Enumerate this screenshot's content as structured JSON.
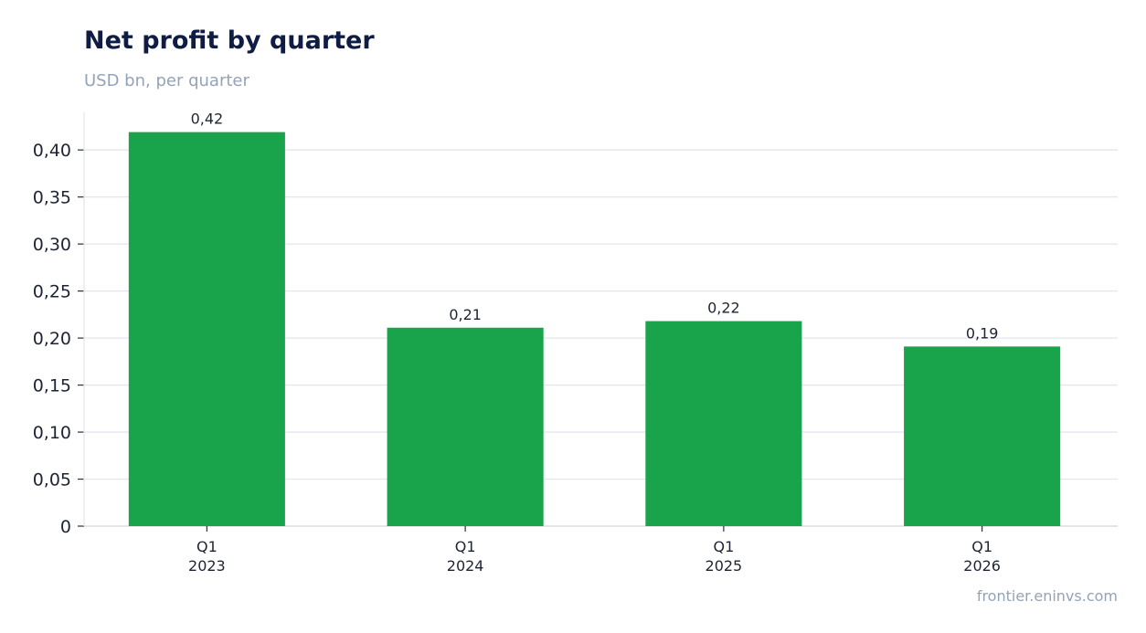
{
  "chart_data": {
    "type": "bar",
    "title": "Net profit by quarter",
    "subtitle": "USD bn, per quarter",
    "categories": [
      [
        "Q1",
        "2023"
      ],
      [
        "Q1",
        "2024"
      ],
      [
        "Q1",
        "2025"
      ],
      [
        "Q1",
        "2026"
      ]
    ],
    "values": [
      0.419,
      0.211,
      0.218,
      0.191
    ],
    "data_labels": [
      "0,42",
      "0,21",
      "0,22",
      "0,19"
    ],
    "yticks": [
      0,
      0.05,
      0.1,
      0.15,
      0.2,
      0.25,
      0.3,
      0.35,
      0.4
    ],
    "ytick_labels": [
      "0",
      "0,05",
      "0,10",
      "0,15",
      "0,20",
      "0,25",
      "0,30",
      "0,35",
      "0,40"
    ],
    "ylim": [
      0,
      0.44
    ],
    "grid": true,
    "legend": false,
    "bar_color": "#19a34a",
    "grid_color": "#e2e6ee",
    "axis_color": "#d0d5de",
    "source": "frontier.eninvs.com"
  }
}
